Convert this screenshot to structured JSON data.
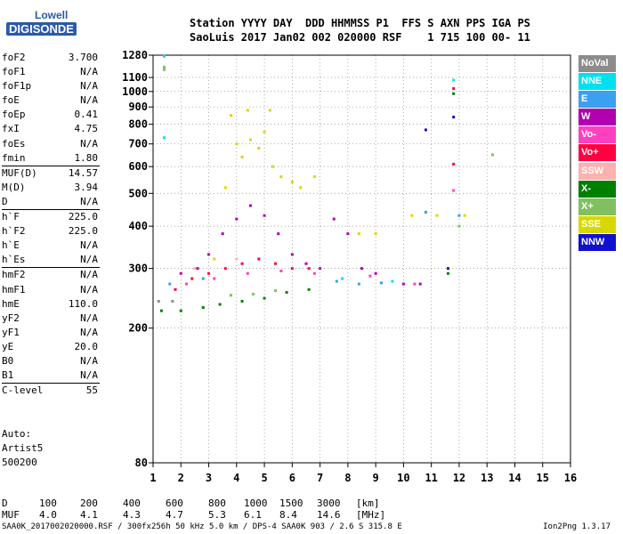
{
  "logo": {
    "line1": "Lowell",
    "line2": "DIGISONDE"
  },
  "header": {
    "line1": "Station YYYY DAY  DDD HHMMSS P1  FFS S AXN PPS IGA PS",
    "line2": "SaoLuis 2017 Jan02 002 020000 RSF    1 715 100 00- 11"
  },
  "params": [
    {
      "label": "foF2",
      "value": "3.700"
    },
    {
      "label": "foF1",
      "value": "N/A"
    },
    {
      "label": "foF1p",
      "value": "N/A"
    },
    {
      "label": "foE",
      "value": "N/A"
    },
    {
      "label": "foEp",
      "value": "0.41"
    },
    {
      "label": "fxI",
      "value": "4.75"
    },
    {
      "label": "foEs",
      "value": "N/A"
    },
    {
      "label": "fmin",
      "value": "1.80"
    },
    {
      "sep": true
    },
    {
      "label": "MUF(D)",
      "value": "14.57"
    },
    {
      "label": "M(D)",
      "value": "3.94"
    },
    {
      "label": "D",
      "value": "N/A"
    },
    {
      "sep": true
    },
    {
      "label": "h`F",
      "value": "225.0"
    },
    {
      "label": "h`F2",
      "value": "225.0"
    },
    {
      "label": "h`E",
      "value": "N/A"
    },
    {
      "label": "h`Es",
      "value": "N/A"
    },
    {
      "sep": true
    },
    {
      "label": "hmF2",
      "value": "N/A"
    },
    {
      "label": "hmF1",
      "value": "N/A"
    },
    {
      "label": "hmE",
      "value": "110.0"
    },
    {
      "label": "yF2",
      "value": "N/A"
    },
    {
      "label": "yF1",
      "value": "N/A"
    },
    {
      "label": "yE",
      "value": "20.0"
    },
    {
      "label": "B0",
      "value": "N/A"
    },
    {
      "label": "B1",
      "value": "N/A"
    },
    {
      "sep": true
    },
    {
      "label": "C-level",
      "value": "55"
    }
  ],
  "auto": {
    "line1": "Auto:",
    "line2": "Artist5",
    "line3": "500200"
  },
  "legend": [
    {
      "label": "NoVal",
      "color": "#8c8c8c"
    },
    {
      "label": "NNE",
      "color": "#00e0f0"
    },
    {
      "label": "E",
      "color": "#3aa0f0"
    },
    {
      "label": "W",
      "color": "#b000b0"
    },
    {
      "label": "Vo-",
      "color": "#ff40c0"
    },
    {
      "label": "Vo+",
      "color": "#ff0040"
    },
    {
      "label": "SSW",
      "color": "#ffb0b0"
    },
    {
      "label": "X-",
      "color": "#008000"
    },
    {
      "label": "X+",
      "color": "#80c060"
    },
    {
      "label": "SSE",
      "color": "#d8d800"
    },
    {
      "label": "NNW",
      "color": "#1010d0"
    }
  ],
  "chart_data": {
    "type": "scatter",
    "title": "",
    "xlabel": "",
    "ylabel": "",
    "xlim": [
      1,
      16
    ],
    "ylim": [
      80,
      1280
    ],
    "x_ticks": [
      1,
      2,
      3,
      4,
      5,
      6,
      7,
      8,
      9,
      10,
      11,
      12,
      13,
      14,
      15,
      16
    ],
    "y_ticks": [
      80,
      200,
      300,
      400,
      500,
      600,
      700,
      800,
      900,
      1000,
      1100,
      1280
    ],
    "y_scale": "log",
    "grid": true,
    "series": [
      {
        "color": "#d8d800",
        "points": [
          [
            3.2,
            320
          ],
          [
            3.6,
            520
          ],
          [
            4.0,
            700
          ],
          [
            4.2,
            640
          ],
          [
            4.5,
            720
          ],
          [
            4.8,
            680
          ],
          [
            5.0,
            760
          ],
          [
            5.3,
            600
          ],
          [
            5.6,
            560
          ],
          [
            6.0,
            540
          ],
          [
            6.3,
            520
          ],
          [
            6.8,
            560
          ],
          [
            3.8,
            850
          ],
          [
            4.4,
            880
          ],
          [
            5.2,
            880
          ],
          [
            8.4,
            380
          ],
          [
            9.0,
            380
          ],
          [
            10.3,
            430
          ],
          [
            10.8,
            440
          ],
          [
            11.2,
            430
          ],
          [
            12.2,
            430
          ]
        ]
      },
      {
        "color": "#b000b0",
        "points": [
          [
            2.0,
            290
          ],
          [
            2.6,
            300
          ],
          [
            3.0,
            330
          ],
          [
            3.5,
            380
          ],
          [
            4.0,
            420
          ],
          [
            4.5,
            460
          ],
          [
            5.0,
            430
          ],
          [
            5.5,
            380
          ],
          [
            6.0,
            330
          ],
          [
            6.5,
            310
          ],
          [
            7.0,
            300
          ],
          [
            7.5,
            420
          ],
          [
            8.0,
            380
          ],
          [
            8.5,
            300
          ],
          [
            9.0,
            290
          ],
          [
            10.0,
            270
          ],
          [
            10.6,
            270
          ]
        ]
      },
      {
        "color": "#ff0040",
        "points": [
          [
            1.8,
            260
          ],
          [
            2.4,
            280
          ],
          [
            3.0,
            290
          ],
          [
            3.6,
            300
          ],
          [
            4.2,
            310
          ],
          [
            4.8,
            320
          ],
          [
            5.4,
            310
          ],
          [
            6.0,
            300
          ],
          [
            6.6,
            300
          ],
          [
            11.8,
            1020
          ],
          [
            11.8,
            610
          ]
        ]
      },
      {
        "color": "#ff40c0",
        "points": [
          [
            2.2,
            270
          ],
          [
            3.2,
            280
          ],
          [
            4.4,
            290
          ],
          [
            5.6,
            295
          ],
          [
            6.8,
            290
          ],
          [
            8.8,
            285
          ],
          [
            10.4,
            270
          ],
          [
            11.8,
            510
          ]
        ]
      },
      {
        "color": "#3aa0f0",
        "points": [
          [
            1.6,
            270
          ],
          [
            2.8,
            280
          ],
          [
            7.6,
            275
          ],
          [
            8.4,
            270
          ],
          [
            9.2,
            272
          ],
          [
            10.8,
            440
          ],
          [
            12.0,
            430
          ]
        ]
      },
      {
        "color": "#00e0f0",
        "points": [
          [
            1.4,
            1270
          ],
          [
            1.4,
            730
          ],
          [
            7.8,
            280
          ],
          [
            9.6,
            275
          ],
          [
            11.8,
            1080
          ]
        ]
      },
      {
        "color": "#008000",
        "points": [
          [
            1.3,
            225
          ],
          [
            2.0,
            225
          ],
          [
            2.8,
            230
          ],
          [
            3.4,
            235
          ],
          [
            4.2,
            240
          ],
          [
            5.0,
            245
          ],
          [
            5.8,
            255
          ],
          [
            6.6,
            260
          ],
          [
            11.8,
            985
          ],
          [
            11.6,
            290
          ]
        ]
      },
      {
        "color": "#80c060",
        "points": [
          [
            1.4,
            1180
          ],
          [
            1.4,
            1160
          ],
          [
            3.8,
            250
          ],
          [
            4.6,
            252
          ],
          [
            5.4,
            258
          ],
          [
            12.0,
            400
          ],
          [
            13.2,
            650
          ]
        ]
      },
      {
        "color": "#1010d0",
        "points": [
          [
            11.8,
            840
          ],
          [
            10.8,
            770
          ],
          [
            11.6,
            300
          ]
        ]
      },
      {
        "color": "#8c8c8c",
        "points": [
          [
            1.2,
            240
          ],
          [
            1.7,
            240
          ]
        ]
      },
      {
        "color": "#ffb0b0",
        "points": [
          [
            2.5,
            300
          ],
          [
            4.0,
            320
          ]
        ]
      }
    ]
  },
  "dmuf": {
    "d_label": "D",
    "muf_label": "MUF",
    "d_values": [
      "100",
      "200",
      "400",
      "600",
      "800",
      "1000",
      "1500",
      "3000",
      "[km]"
    ],
    "muf_values": [
      "4.0",
      "4.1",
      "4.3",
      "4.7",
      "5.3",
      "6.1",
      "8.4",
      "14.6",
      "[MHz]"
    ]
  },
  "footer": {
    "text": "SAA0K_2017002020000.RSF / 300fx256h 50 kHz 5.0 km / DPS-4 SAA0K 903 / 2.6 S 315.8 E",
    "version": "Ion2Png 1.3.17"
  }
}
